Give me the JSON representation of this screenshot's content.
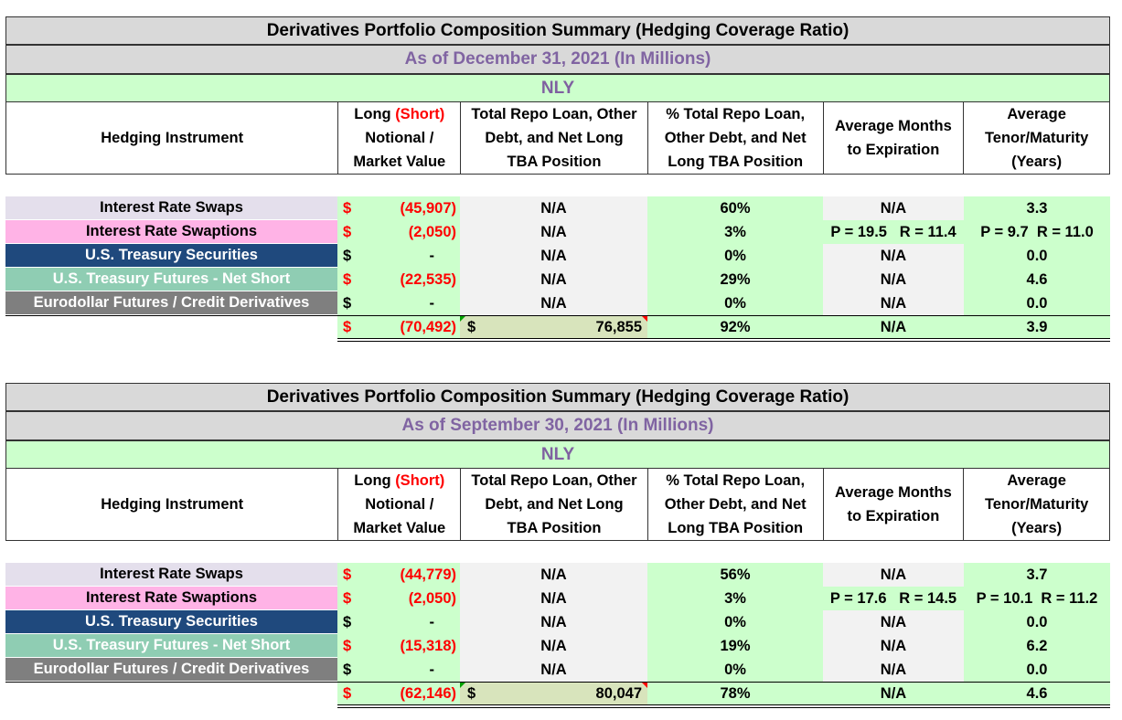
{
  "tables": [
    {
      "title": "Derivatives Portfolio Composition Summary (Hedging Coverage Ratio)",
      "as_of": "As of December 31, 2021 (In Millions)",
      "entity": "NLY",
      "headers": {
        "instrument": "Hedging Instrument",
        "notional_a": "Long ",
        "notional_short": "(Short)",
        "notional_b": "Notional /",
        "notional_c": "Market Value",
        "repo_a": "Total Repo Loan, Other",
        "repo_b": "Debt, and Net Long",
        "repo_c": "TBA Position",
        "pct_a": "% Total Repo Loan,",
        "pct_b": "Other Debt, and Net",
        "pct_c": "Long TBA Position",
        "months_a": "Average Months",
        "months_b": "to Expiration",
        "tenor_a": "Average",
        "tenor_b": "Tenor/Maturity",
        "tenor_c": "(Years)"
      },
      "rows": [
        {
          "name": "Interest Rate Swaps",
          "currency": "$",
          "amount": "(45,907)",
          "repo": "N/A",
          "pct": "60%",
          "months": "N/A",
          "tenor": "3.3"
        },
        {
          "name": "Interest Rate Swaptions",
          "currency": "$",
          "amount": "(2,050)",
          "repo": "N/A",
          "pct": "3%",
          "months": "P = 19.5   R = 11.4",
          "tenor": "P = 9.7  R = 11.0"
        },
        {
          "name": "U.S. Treasury Securities",
          "currency": "$",
          "amount": "-",
          "repo": "N/A",
          "pct": "0%",
          "months": "N/A",
          "tenor": "0.0"
        },
        {
          "name": "U.S. Treasury Futures - Net Short",
          "currency": "$",
          "amount": "(22,535)",
          "repo": "N/A",
          "pct": "29%",
          "months": "N/A",
          "tenor": "4.6"
        },
        {
          "name": "Eurodollar Futures / Credit Derivatives",
          "currency": "$",
          "amount": "-",
          "repo": "N/A",
          "pct": "0%",
          "months": "N/A",
          "tenor": "0.0"
        }
      ],
      "total": {
        "currency": "$",
        "amount": "(70,492)",
        "repo_currency": "$",
        "repo": "76,855",
        "pct": "92%",
        "months": "N/A",
        "tenor": "3.9"
      }
    },
    {
      "title": "Derivatives Portfolio Composition Summary (Hedging Coverage Ratio)",
      "as_of": "As of September 30, 2021 (In Millions)",
      "entity": "NLY",
      "headers": {
        "instrument": "Hedging Instrument",
        "notional_a": "Long ",
        "notional_short": "(Short)",
        "notional_b": "Notional /",
        "notional_c": "Market Value",
        "repo_a": "Total Repo Loan, Other",
        "repo_b": "Debt, and Net Long",
        "repo_c": "TBA Position",
        "pct_a": "% Total Repo Loan,",
        "pct_b": "Other Debt, and Net",
        "pct_c": "Long TBA Position",
        "months_a": "Average Months",
        "months_b": "to Expiration",
        "tenor_a": "Average",
        "tenor_b": "Tenor/Maturity",
        "tenor_c": "(Years)"
      },
      "rows": [
        {
          "name": "Interest Rate Swaps",
          "currency": "$",
          "amount": "(44,779)",
          "repo": "N/A",
          "pct": "56%",
          "months": "N/A",
          "tenor": "3.7"
        },
        {
          "name": "Interest Rate Swaptions",
          "currency": "$",
          "amount": "(2,050)",
          "repo": "N/A",
          "pct": "3%",
          "months": "P = 17.6   R = 14.5",
          "tenor": "P = 10.1  R = 11.2"
        },
        {
          "name": "U.S. Treasury Securities",
          "currency": "$",
          "amount": "-",
          "repo": "N/A",
          "pct": "0%",
          "months": "N/A",
          "tenor": "0.0"
        },
        {
          "name": "U.S. Treasury Futures - Net Short",
          "currency": "$",
          "amount": "(15,318)",
          "repo": "N/A",
          "pct": "19%",
          "months": "N/A",
          "tenor": "6.2"
        },
        {
          "name": "Eurodollar Futures / Credit Derivatives",
          "currency": "$",
          "amount": "-",
          "repo": "N/A",
          "pct": "0%",
          "months": "N/A",
          "tenor": "0.0"
        }
      ],
      "total": {
        "currency": "$",
        "amount": "(62,146)",
        "repo_currency": "$",
        "repo": "80,047",
        "pct": "78%",
        "months": "N/A",
        "tenor": "4.6"
      }
    }
  ]
}
